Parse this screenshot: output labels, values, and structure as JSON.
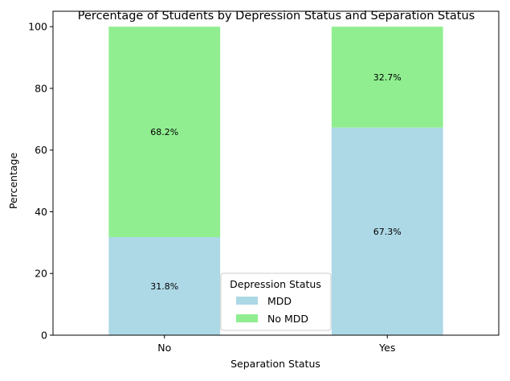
{
  "chart_data": {
    "type": "bar",
    "stacked": true,
    "title": "Percentage of Students by Depression Status and Separation Status",
    "xlabel": "Separation Status",
    "ylabel": "Percentage",
    "categories": [
      "No",
      "Yes"
    ],
    "ylim": [
      0,
      105
    ],
    "yticks": [
      "0",
      "20",
      "40",
      "60",
      "80",
      "100"
    ],
    "grid": false,
    "series": [
      {
        "name": "MDD",
        "values": [
          31.8,
          67.3
        ],
        "labels": [
          "31.8%",
          "67.3%"
        ],
        "color": "#add8e6"
      },
      {
        "name": "No MDD",
        "values": [
          68.2,
          32.7
        ],
        "labels": [
          "68.2%",
          "32.7%"
        ],
        "color": "#90ee90"
      }
    ],
    "legend": {
      "title": "Depression Status",
      "position": "bottom-center"
    }
  }
}
